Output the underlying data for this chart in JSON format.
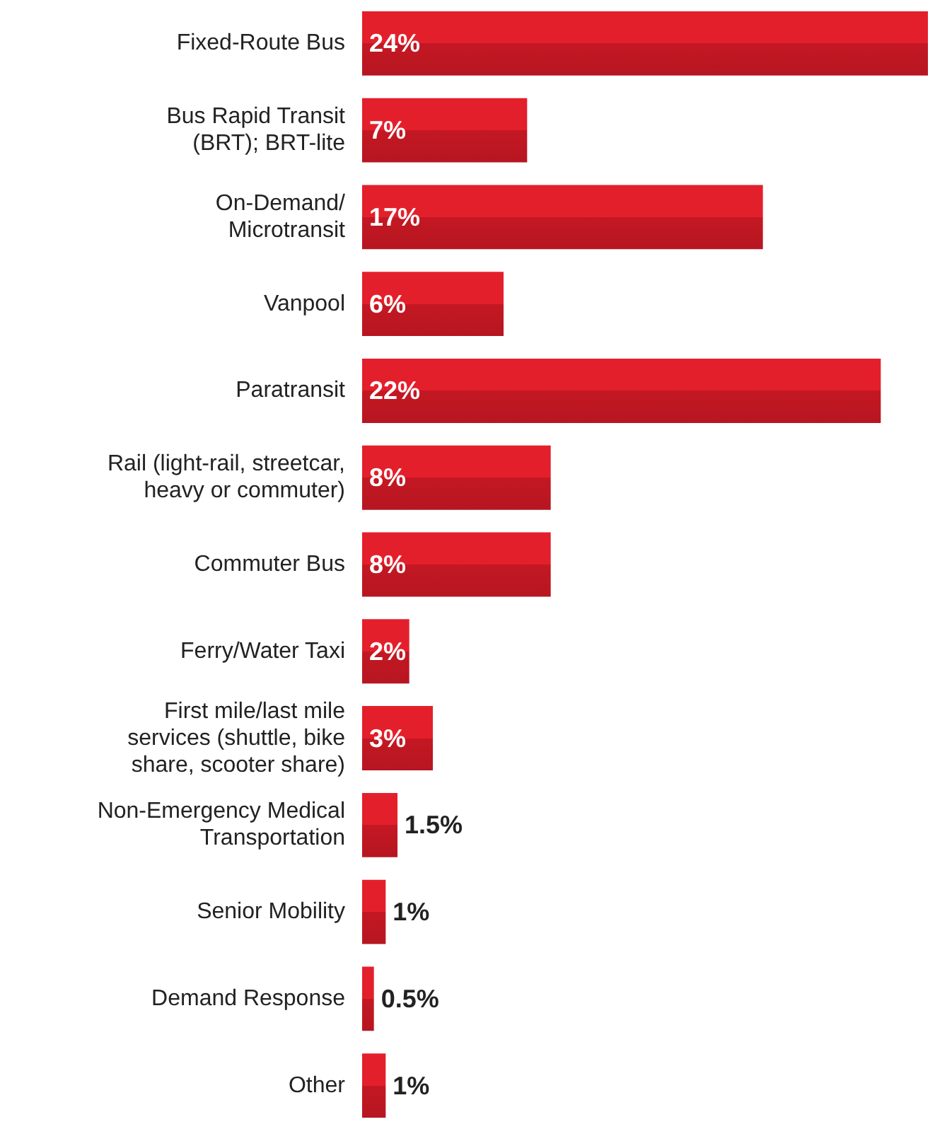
{
  "chart_data": {
    "type": "bar",
    "orientation": "horizontal",
    "categories": [
      "Fixed-Route Bus",
      "Bus Rapid Transit\n(BRT); BRT-lite",
      "On-Demand/\nMicrotransit",
      "Vanpool",
      "Paratransit",
      "Rail (light-rail, streetcar,\nheavy or commuter)",
      "Commuter Bus",
      "Ferry/Water Taxi",
      "First mile/last mile\nservices (shuttle, bike\nshare, scooter share)",
      "Non-Emergency Medical\nTransportation",
      "Senior Mobility",
      "Demand Response",
      "Other"
    ],
    "values": [
      24,
      7,
      17,
      6,
      22,
      8,
      8,
      2,
      3,
      1.5,
      1,
      0.5,
      1
    ],
    "value_labels": [
      "24%",
      "7%",
      "17%",
      "6%",
      "22%",
      "8%",
      "8%",
      "2%",
      "3%",
      "1.5%",
      "1%",
      "0.5%",
      "1%"
    ],
    "color": "#e41f2c"
  }
}
